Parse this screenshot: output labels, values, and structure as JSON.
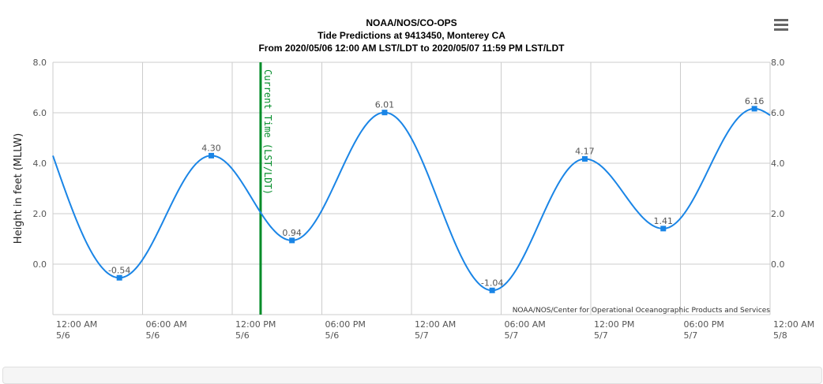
{
  "chart_data": {
    "type": "line",
    "title": [
      "NOAA/NOS/CO-OPS",
      "Tide Predictions at 9413450, Monterey CA",
      "From 2020/05/06 12:00 AM LST/LDT to 2020/05/07 11:59 PM LST/LDT"
    ],
    "ylabel": "Height in feet (MLLW)",
    "xlabel": "",
    "ylim": [
      -2.0,
      8.0
    ],
    "yticks": [
      "8.0",
      "6.0",
      "4.0",
      "2.0",
      "0.0"
    ],
    "xlim_hours": [
      0,
      48
    ],
    "xticks": [
      {
        "time": "12:00 AM",
        "date": "5/6"
      },
      {
        "time": "06:00 AM",
        "date": "5/6"
      },
      {
        "time": "12:00 PM",
        "date": "5/6"
      },
      {
        "time": "06:00 PM",
        "date": "5/6"
      },
      {
        "time": "12:00 AM",
        "date": "5/7"
      },
      {
        "time": "06:00 AM",
        "date": "5/7"
      },
      {
        "time": "12:00 PM",
        "date": "5/7"
      },
      {
        "time": "06:00 PM",
        "date": "5/7"
      },
      {
        "time": "12:00 AM",
        "date": "5/8"
      }
    ],
    "series": [
      {
        "color": "#1a85e6",
        "points": [
          {
            "hour": 0.0,
            "value": 4.3
          },
          {
            "hour": 4.45,
            "value": -0.54,
            "label": "-0.54"
          },
          {
            "hour": 10.6,
            "value": 4.3,
            "label": "4.30"
          },
          {
            "hour": 16.0,
            "value": 0.94,
            "label": "0.94"
          },
          {
            "hour": 22.2,
            "value": 6.01,
            "label": "6.01"
          },
          {
            "hour": 29.4,
            "value": -1.04,
            "label": "-1.04"
          },
          {
            "hour": 35.6,
            "value": 4.17,
            "label": "4.17"
          },
          {
            "hour": 40.85,
            "value": 1.41,
            "label": "1.41"
          },
          {
            "hour": 46.95,
            "value": 6.16,
            "label": "6.16"
          },
          {
            "hour": 48.0,
            "value": 5.9
          }
        ]
      }
    ],
    "current_time": {
      "hour": 13.9,
      "label": "Current Time (LST/LDT)",
      "color": "#008c28"
    },
    "credit": "NOAA/NOS/Center for Operational Oceanographic Products and Services",
    "grid": true
  }
}
